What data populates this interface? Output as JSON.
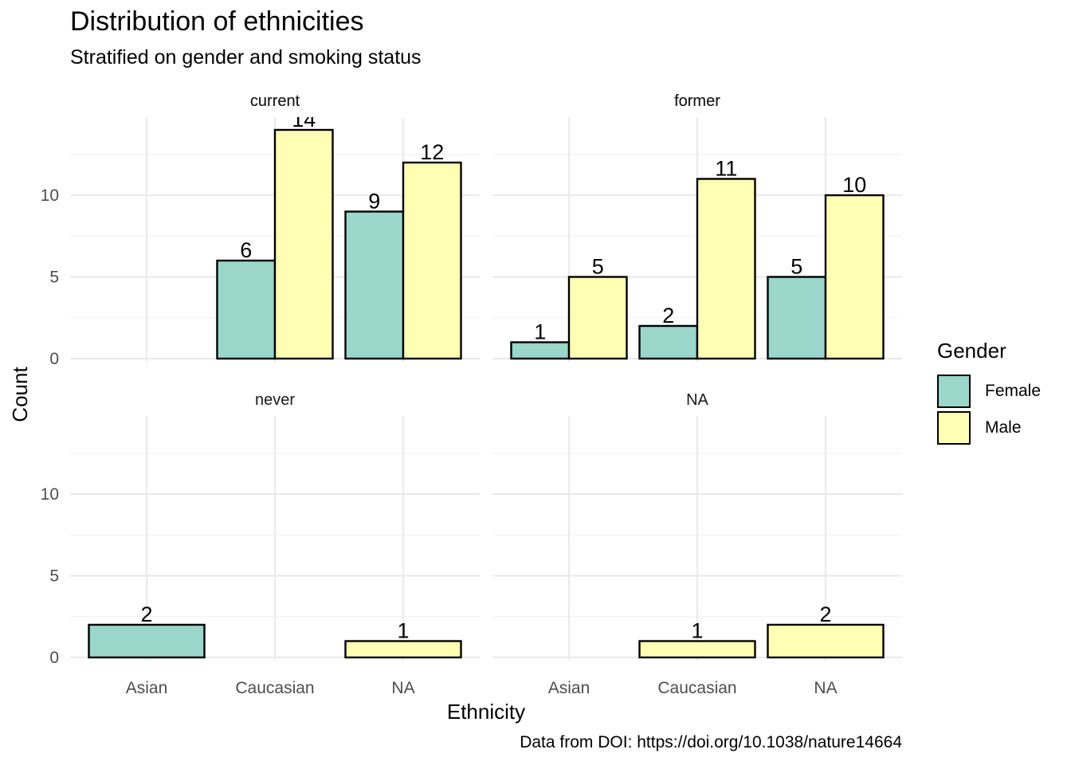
{
  "title": "Distribution of ethnicities",
  "subtitle": "Stratified on gender and smoking status",
  "caption": "Data from DOI: https://doi.org/10.1038/nature14664",
  "colors": {
    "Female": "#9AD6CA",
    "Male": "#FFFFB3",
    "grid": "#EBEBEB",
    "stroke": "#000000"
  },
  "chart_data": {
    "type": "bar",
    "xlabel": "Ethnicity",
    "ylabel": "Count",
    "categories": [
      "Asian",
      "Caucasian",
      "NA"
    ],
    "y_ticks": [
      0,
      5,
      10
    ],
    "ylim": [
      0,
      14.7
    ],
    "legend": {
      "title": "Gender",
      "position": "right",
      "entries": [
        "Female",
        "Male"
      ]
    },
    "grid": true,
    "facets": [
      {
        "label": "current",
        "bars": [
          {
            "category": "Caucasian",
            "series": "Female",
            "value": 6
          },
          {
            "category": "Caucasian",
            "series": "Male",
            "value": 14
          },
          {
            "category": "NA",
            "series": "Female",
            "value": 9
          },
          {
            "category": "NA",
            "series": "Male",
            "value": 12
          }
        ]
      },
      {
        "label": "former",
        "bars": [
          {
            "category": "Asian",
            "series": "Female",
            "value": 1
          },
          {
            "category": "Asian",
            "series": "Male",
            "value": 5
          },
          {
            "category": "Caucasian",
            "series": "Female",
            "value": 2
          },
          {
            "category": "Caucasian",
            "series": "Male",
            "value": 11
          },
          {
            "category": "NA",
            "series": "Female",
            "value": 5
          },
          {
            "category": "NA",
            "series": "Male",
            "value": 10
          }
        ]
      },
      {
        "label": "never",
        "bars": [
          {
            "category": "Asian",
            "series": "Female",
            "value": 2
          },
          {
            "category": "NA",
            "series": "Male",
            "value": 1
          }
        ]
      },
      {
        "label": "NA",
        "bars": [
          {
            "category": "Caucasian",
            "series": "Male",
            "value": 1
          },
          {
            "category": "NA",
            "series": "Male",
            "value": 2
          }
        ]
      }
    ]
  }
}
